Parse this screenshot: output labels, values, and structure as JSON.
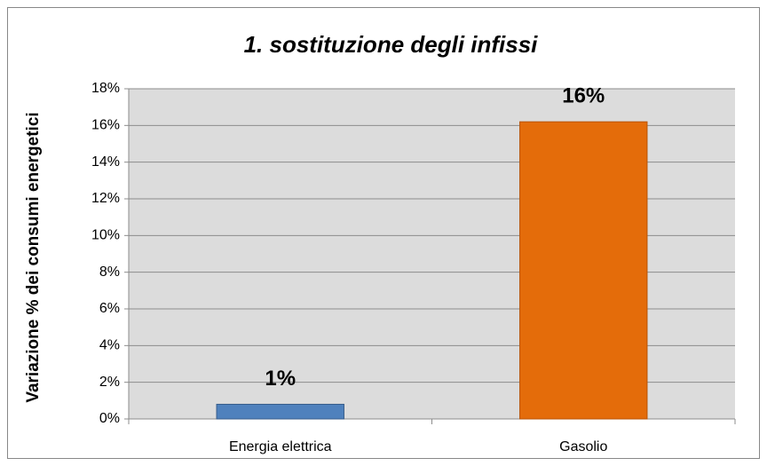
{
  "chart_data": {
    "type": "bar",
    "title": "1. sostituzione degli infissi",
    "y_label": "Variazione % dei consumi energetici",
    "categories": [
      "Energia elettrica",
      "Gasolio"
    ],
    "values": [
      0.8,
      16.2
    ],
    "value_labels": [
      "1%",
      "16%"
    ],
    "colors": [
      "#4f81bd",
      "#e46c0a"
    ],
    "ylim": [
      0,
      18
    ],
    "yticks": [
      {
        "value": 0,
        "label": "0%"
      },
      {
        "value": 2,
        "label": "2%"
      },
      {
        "value": 4,
        "label": "4%"
      },
      {
        "value": 6,
        "label": "6%"
      },
      {
        "value": 8,
        "label": "8%"
      },
      {
        "value": 10,
        "label": "10%"
      },
      {
        "value": 12,
        "label": "12%"
      },
      {
        "value": 14,
        "label": "14%"
      },
      {
        "value": 16,
        "label": "16%"
      },
      {
        "value": 18,
        "label": "18%"
      }
    ],
    "grid": true
  }
}
